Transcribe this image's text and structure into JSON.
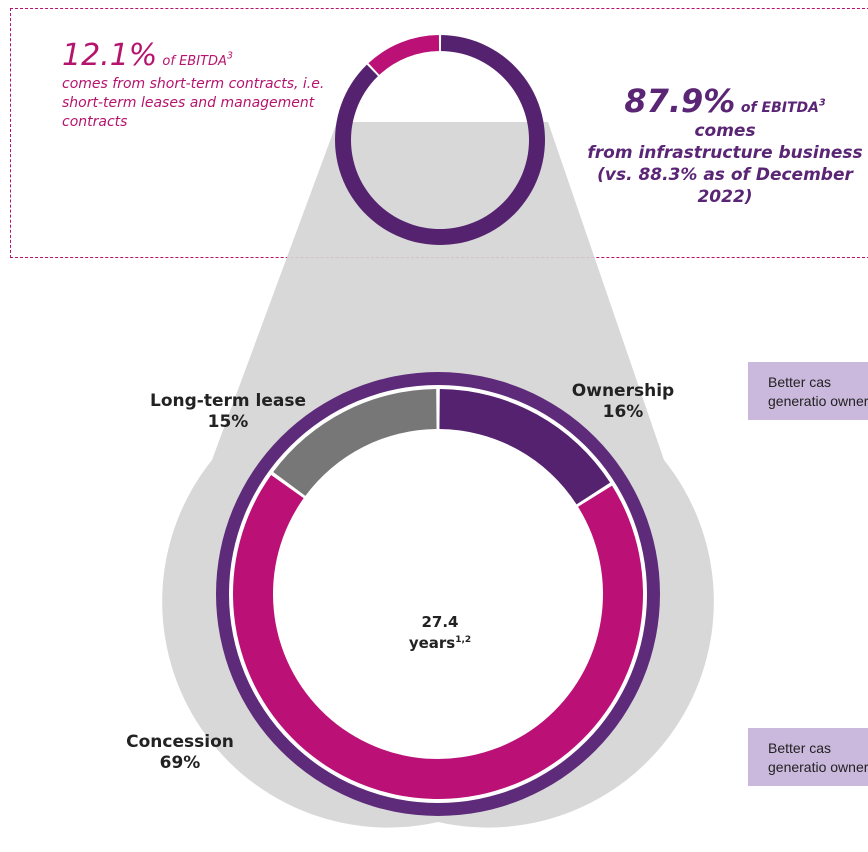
{
  "top_callouts": {
    "left": {
      "value": "12.1%",
      "suffix": "of EBITDA",
      "footnote": "3",
      "description": "comes from short-term contracts, i.e. short-term leases and management contracts"
    },
    "right": {
      "value": "87.9%",
      "suffix": "of EBITDA",
      "footnote": "3",
      "description_line1": "comes",
      "description_line2": "from infrastructure business (vs. 88.3% as of December 2022)"
    }
  },
  "side_notes": [
    {
      "text": "Better cas generatio ownershi"
    },
    {
      "text": "Better cas generatio ownershi"
    }
  ],
  "center": {
    "value": "27.4",
    "unit": "years",
    "footnote": "1,2"
  },
  "colors": {
    "purple": "#55226f",
    "magenta": "#bb1177",
    "gray": "#777777",
    "light_gray": "#d4d4d4",
    "outer_ring": "#5e2b7a"
  },
  "chart_data": [
    {
      "type": "pie",
      "variant": "donut",
      "categories": [
        "Short-term contracts",
        "Infrastructure business"
      ],
      "values": [
        12.1,
        87.9
      ],
      "colors": [
        "#bb1177",
        "#55226f"
      ]
    },
    {
      "type": "pie",
      "variant": "donut",
      "categories": [
        "Ownership",
        "Concession",
        "Long-term lease"
      ],
      "values": [
        16,
        69,
        15
      ],
      "labels": [
        {
          "name": "Ownership",
          "pct": "16%"
        },
        {
          "name": "Concession",
          "pct": "69%"
        },
        {
          "name": "Long-term lease",
          "pct": "15%"
        }
      ],
      "colors": [
        "#55226f",
        "#bb1177",
        "#777777"
      ]
    }
  ]
}
